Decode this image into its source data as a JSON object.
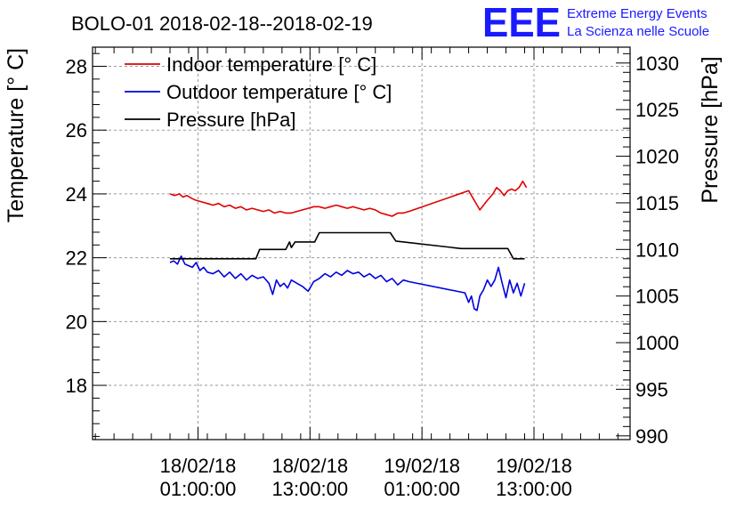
{
  "title": "BOLO-01 2018-02-18--2018-02-19",
  "logo": {
    "mark": "EEE",
    "line1": "Extreme Energy Events",
    "line2": "La Scienza nelle Scuole",
    "color": "#1a1aff"
  },
  "chart_data": {
    "type": "line",
    "title": "BOLO-01 2018-02-18--2018-02-19",
    "xlabel": "",
    "ylabel": "Temperature [° C]",
    "ylabel_right": "Pressure [hPa]",
    "grid": true,
    "legend_position": "top-left",
    "x_unit": "hours since 18/02/18 00:00:00",
    "xlim": [
      -10.3,
      47.3
    ],
    "ylim_left": [
      16.3,
      28.6
    ],
    "ylim_right": [
      989.6,
      1031.7
    ],
    "x_ticks": [
      {
        "x": 1,
        "date": "18/02/18",
        "time": "01:00:00"
      },
      {
        "x": 13,
        "date": "18/02/18",
        "time": "13:00:00"
      },
      {
        "x": 25,
        "date": "19/02/18",
        "time": "01:00:00"
      },
      {
        "x": 37,
        "date": "19/02/18",
        "time": "13:00:00"
      }
    ],
    "y_ticks_left": [
      18,
      20,
      22,
      24,
      26,
      28
    ],
    "y_ticks_right": [
      990,
      995,
      1000,
      1005,
      1010,
      1015,
      1020,
      1025,
      1030
    ],
    "series": [
      {
        "name": "Indoor temperature [° C]",
        "color": "#e00000",
        "axis": "left",
        "x": [
          -2.0,
          -1.5,
          -1.0,
          -0.6,
          -0.2,
          0.4,
          0.8,
          1.4,
          2.0,
          2.6,
          3.2,
          3.8,
          4.4,
          5.0,
          5.6,
          6.2,
          6.8,
          7.4,
          8.0,
          8.6,
          9.2,
          9.8,
          10.4,
          11.0,
          11.6,
          12.2,
          12.8,
          13.4,
          14.0,
          14.6,
          15.2,
          15.8,
          16.4,
          17.0,
          17.6,
          18.2,
          18.8,
          19.4,
          20.0,
          20.6,
          21.2,
          21.8,
          22.4,
          23.0,
          23.6,
          30.0,
          31.2,
          32.0,
          32.6,
          33.0,
          33.4,
          33.8,
          34.2,
          34.6,
          35.0,
          35.4,
          35.8,
          36.2
        ],
        "y": [
          24.0,
          23.95,
          24.0,
          23.9,
          23.95,
          23.85,
          23.8,
          23.75,
          23.7,
          23.65,
          23.7,
          23.6,
          23.65,
          23.55,
          23.6,
          23.5,
          23.55,
          23.5,
          23.45,
          23.5,
          23.4,
          23.45,
          23.4,
          23.4,
          23.45,
          23.5,
          23.55,
          23.6,
          23.6,
          23.55,
          23.6,
          23.65,
          23.6,
          23.55,
          23.6,
          23.55,
          23.5,
          23.55,
          23.5,
          23.4,
          23.35,
          23.3,
          23.4,
          23.4,
          23.45,
          24.1,
          23.5,
          23.8,
          24.0,
          24.2,
          24.1,
          23.95,
          24.1,
          24.15,
          24.1,
          24.2,
          24.4,
          24.2
        ]
      },
      {
        "name": "Outdoor temperature [° C]",
        "color": "#0000e0",
        "axis": "left",
        "x": [
          -2.0,
          -1.6,
          -1.2,
          -0.8,
          -0.4,
          0.0,
          0.4,
          0.8,
          1.2,
          1.6,
          2.0,
          2.6,
          3.2,
          3.8,
          4.4,
          5.0,
          5.6,
          6.2,
          6.8,
          7.4,
          8.0,
          8.6,
          9.0,
          9.4,
          9.8,
          10.2,
          10.6,
          11.0,
          11.6,
          12.2,
          12.8,
          13.4,
          14.0,
          14.6,
          15.2,
          15.8,
          16.4,
          17.0,
          17.6,
          18.2,
          18.8,
          19.4,
          20.0,
          20.6,
          21.2,
          21.8,
          22.4,
          23.0,
          23.6,
          29.6,
          30.0,
          30.3,
          30.6,
          30.9,
          31.2,
          31.6,
          32.0,
          32.4,
          32.8,
          33.2,
          33.6,
          34.0,
          34.4,
          34.8,
          35.2,
          35.6,
          36.0
        ],
        "y": [
          21.85,
          21.9,
          21.8,
          22.05,
          21.8,
          21.75,
          21.7,
          21.85,
          21.6,
          21.7,
          21.55,
          21.5,
          21.6,
          21.4,
          21.55,
          21.35,
          21.5,
          21.3,
          21.45,
          21.35,
          21.4,
          21.2,
          20.85,
          21.3,
          21.1,
          21.2,
          21.05,
          21.3,
          21.2,
          21.1,
          20.95,
          21.25,
          21.35,
          21.5,
          21.4,
          21.55,
          21.45,
          21.6,
          21.5,
          21.55,
          21.4,
          21.5,
          21.35,
          21.45,
          21.25,
          21.35,
          21.15,
          21.3,
          21.25,
          20.9,
          20.6,
          20.8,
          20.4,
          20.35,
          20.8,
          21.0,
          21.3,
          21.1,
          21.3,
          21.7,
          21.2,
          20.75,
          21.3,
          20.9,
          21.2,
          20.8,
          21.2
        ]
      },
      {
        "name": "Pressure [hPa]",
        "color": "#000000",
        "axis": "right",
        "x": [
          -2.0,
          7.2,
          7.6,
          10.4,
          10.8,
          11.0,
          11.4,
          13.5,
          14.0,
          17.4,
          21.6,
          22.2,
          29.2,
          34.2,
          34.8,
          36.0
        ],
        "y": [
          1009.0,
          1009.0,
          1010.0,
          1010.0,
          1010.8,
          1010.2,
          1010.8,
          1010.8,
          1011.8,
          1011.8,
          1011.8,
          1010.9,
          1010.1,
          1010.1,
          1009.0,
          1009.0
        ]
      }
    ]
  }
}
